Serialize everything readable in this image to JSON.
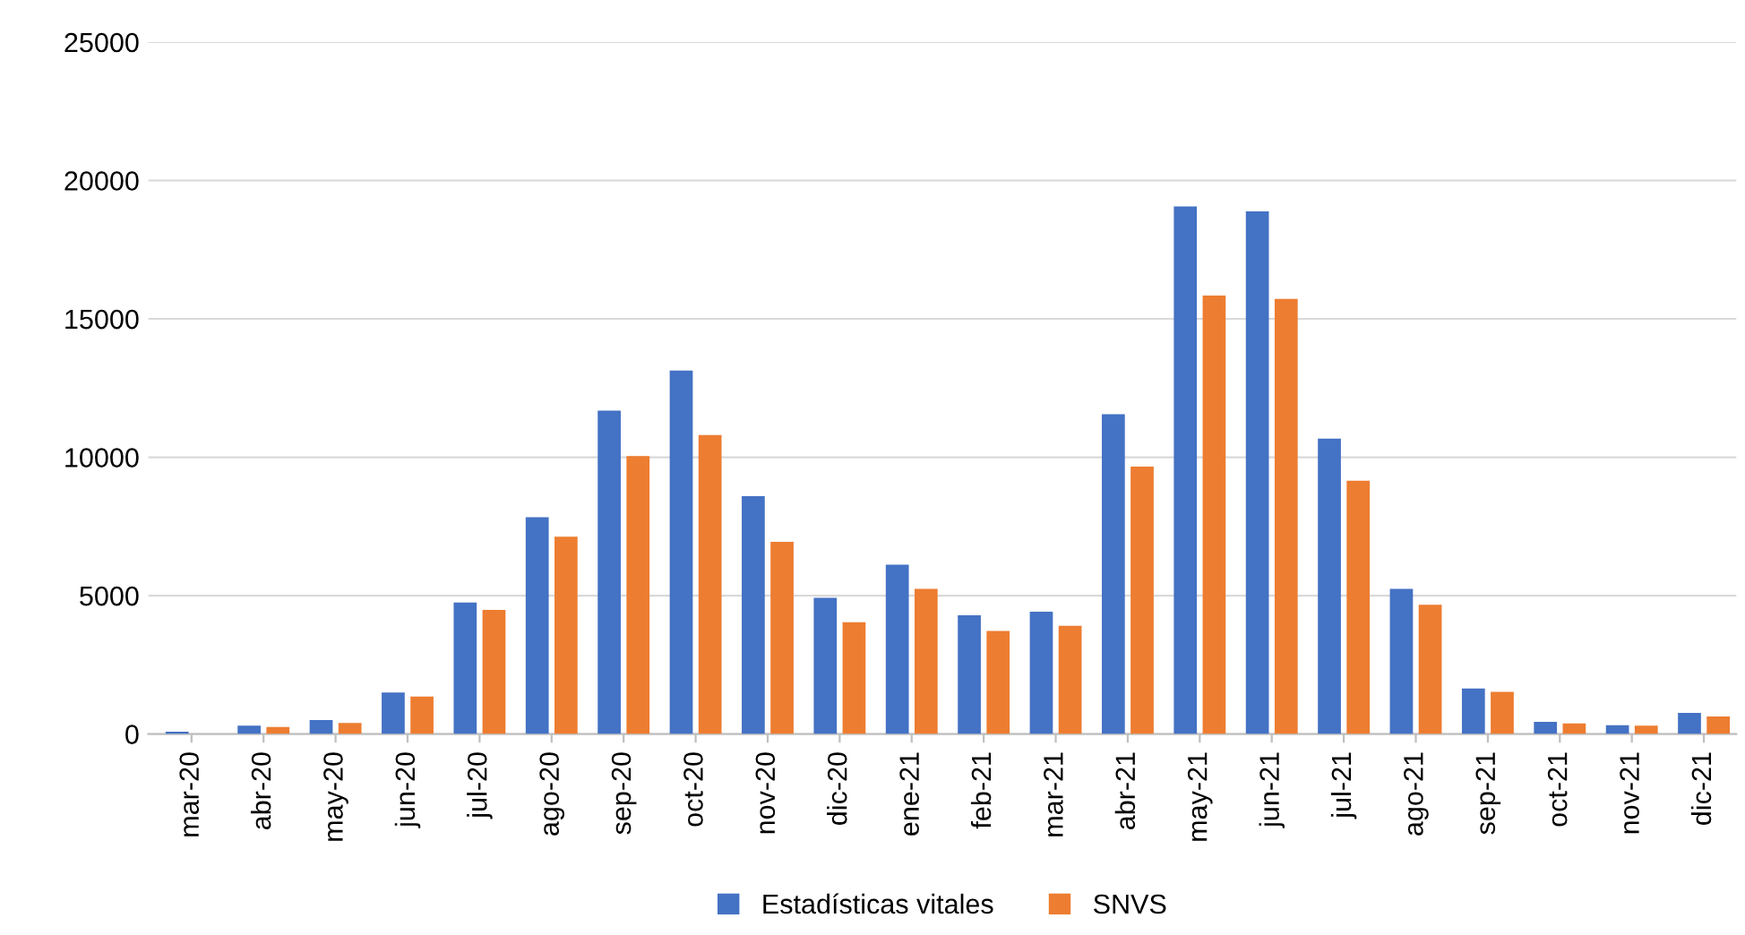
{
  "chart_data": {
    "type": "bar",
    "categories": [
      "mar-20",
      "abr-20",
      "may-20",
      "jun-20",
      "jul-20",
      "ago-20",
      "sep-20",
      "oct-20",
      "nov-20",
      "dic-20",
      "ene-21",
      "feb-21",
      "mar-21",
      "abr-21",
      "may-21",
      "jun-21",
      "jul-21",
      "ago-21",
      "sep-21",
      "oct-21",
      "nov-21",
      "dic-21"
    ],
    "series": [
      {
        "name": "Estadísticas vitales",
        "color": "#4472c4",
        "values": [
          80,
          300,
          500,
          1500,
          4750,
          7830,
          11680,
          13130,
          8590,
          4920,
          6120,
          4290,
          4420,
          11550,
          19060,
          18880,
          10670,
          5240,
          1640,
          440,
          320,
          760
        ]
      },
      {
        "name": "SNVS",
        "color": "#ed7d31",
        "values": [
          null,
          250,
          400,
          1350,
          4480,
          7130,
          10040,
          10800,
          6940,
          4040,
          5240,
          3720,
          3910,
          9660,
          15840,
          15720,
          9150,
          4670,
          1520,
          380,
          300,
          630
        ]
      }
    ],
    "ylim": [
      0,
      25000
    ],
    "yticks": [
      0,
      5000,
      10000,
      15000,
      20000,
      25000
    ],
    "grid": "y",
    "legend": "bottom"
  }
}
